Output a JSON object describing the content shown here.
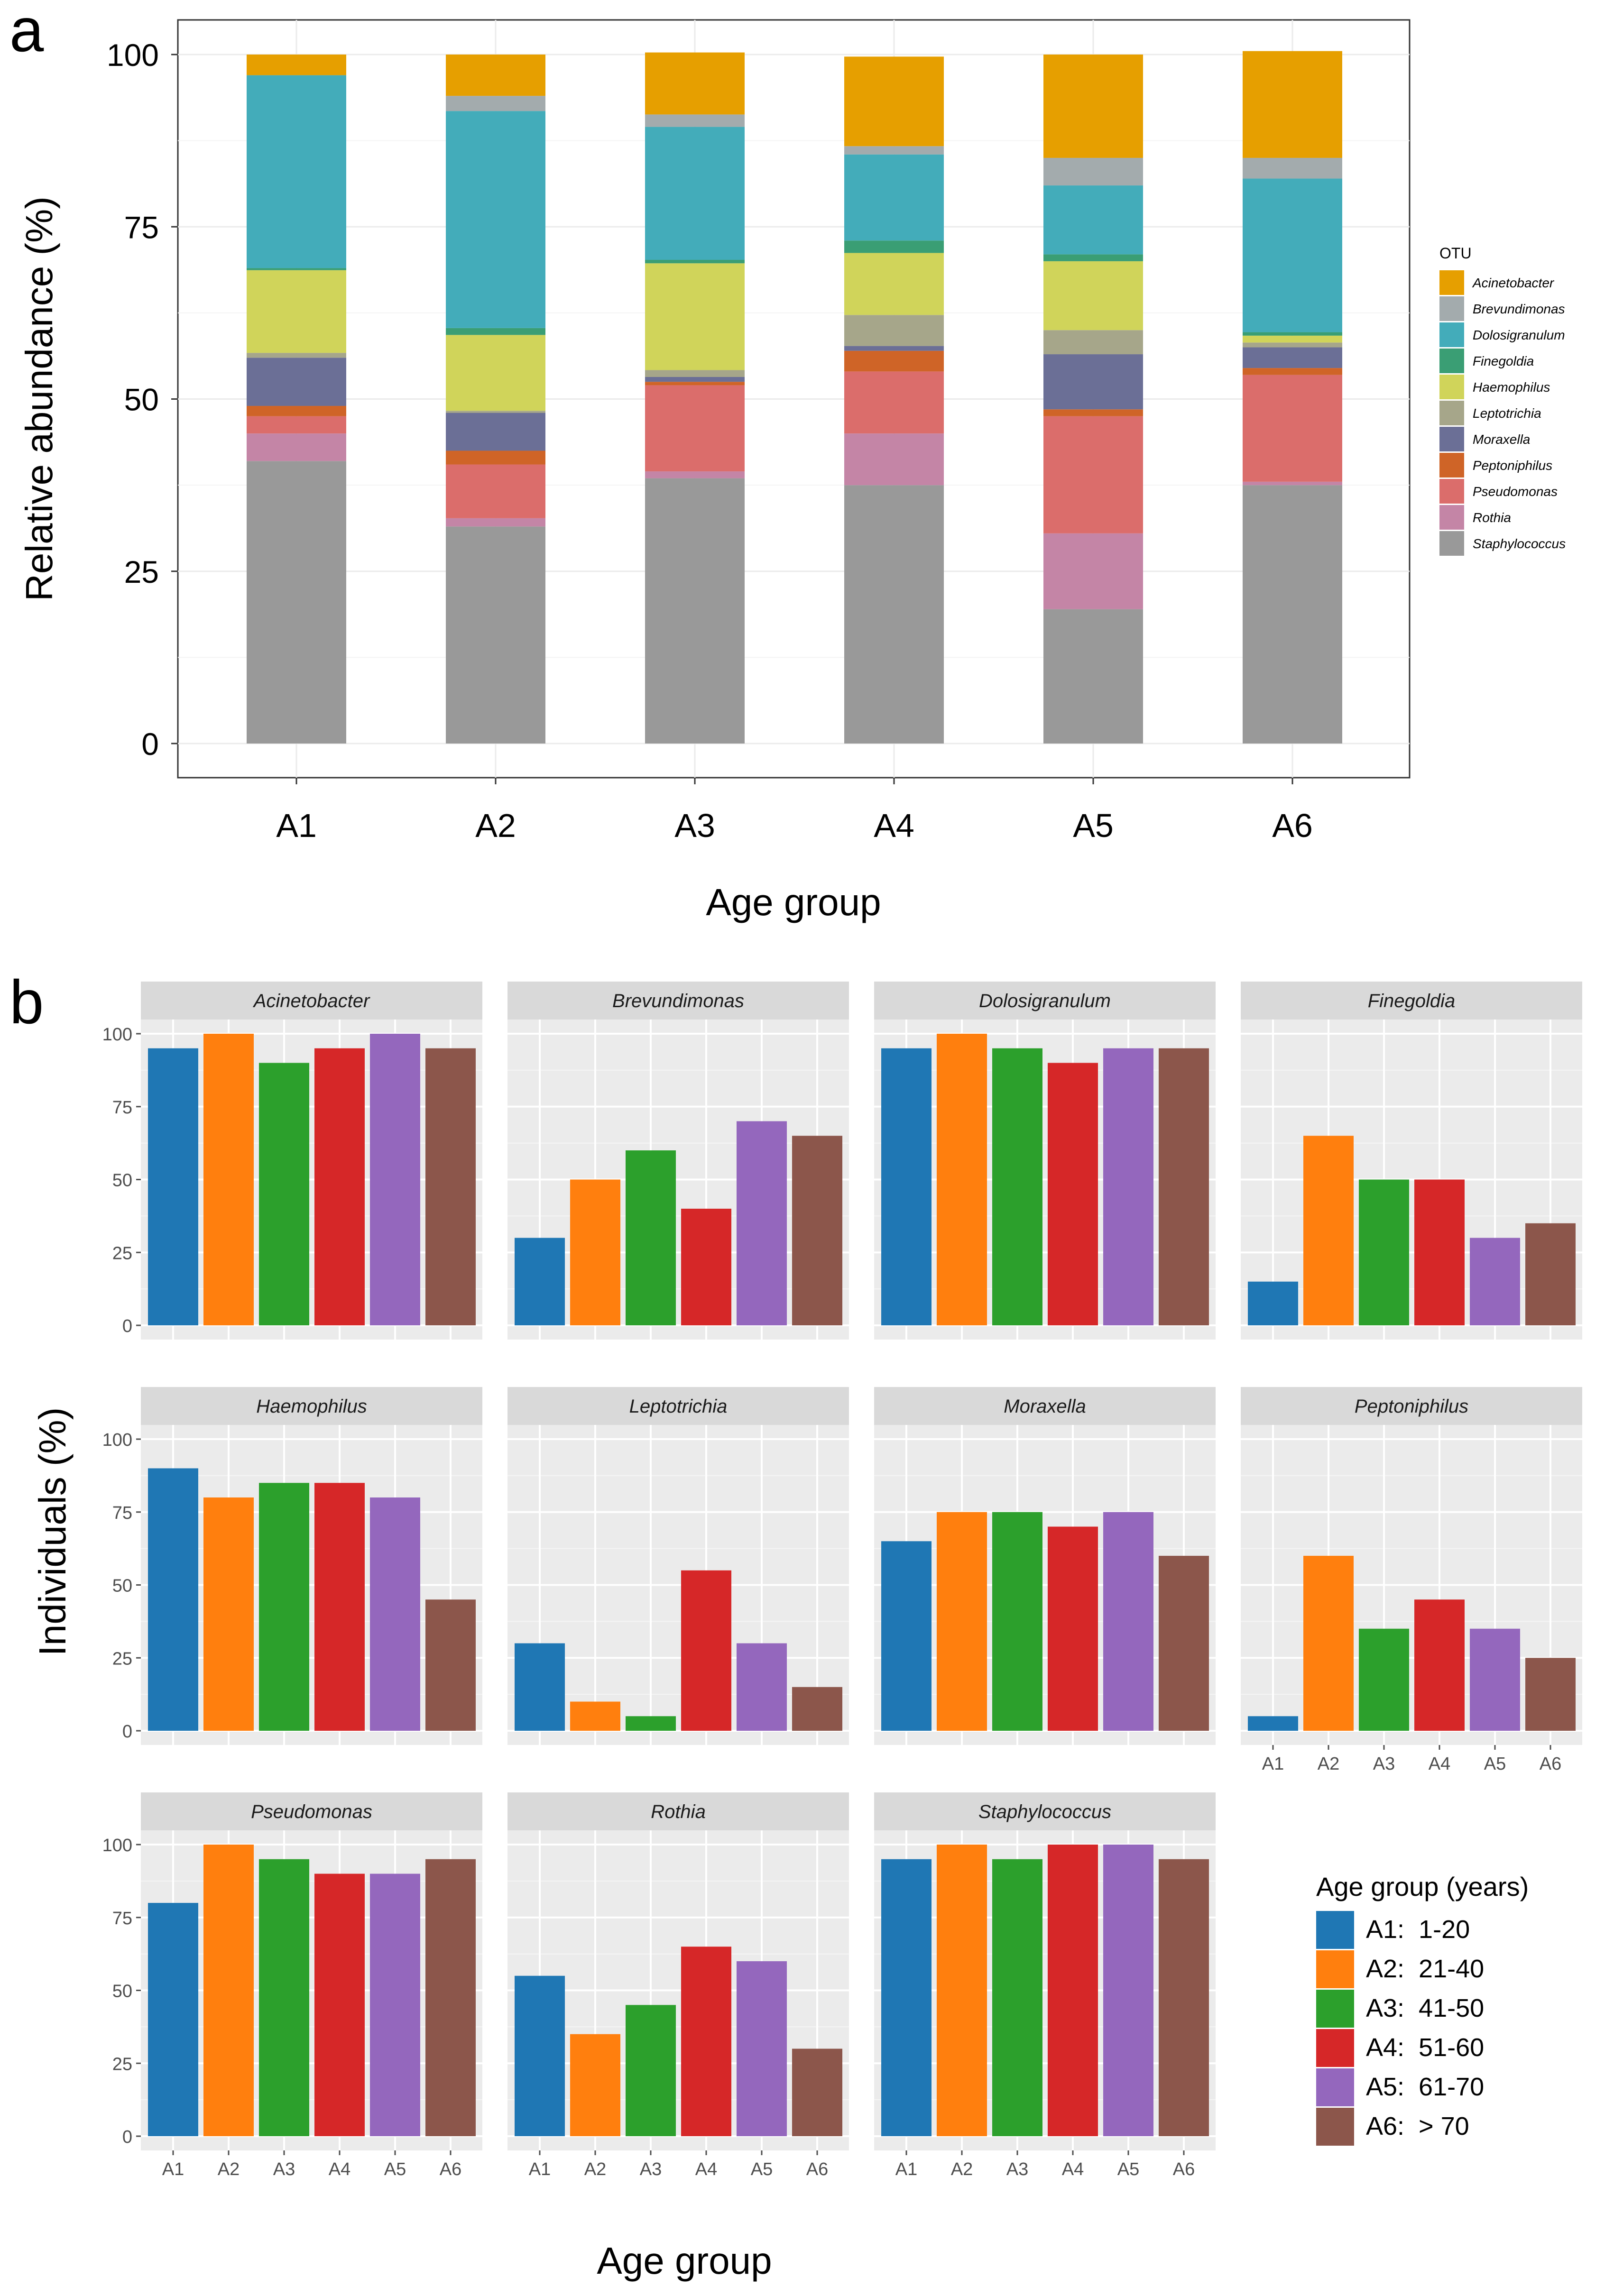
{
  "colors": {
    "Acinetobacter": "#E69F00",
    "Brevundimonas": "#A3ABAD",
    "Dolosigranulum": "#43ACBA",
    "Finegoldia": "#3A9E74",
    "Haemophilus": "#D0D45A",
    "Leptotrichia": "#A6A68A",
    "Moraxella": "#6B6F96",
    "Peptoniphilus": "#CF6427",
    "Pseudomonas": "#DB6D6B",
    "Rothia": "#C485A6",
    "Staphylococcus": "#999999",
    "age": [
      "#1F77B4",
      "#FF7F0E",
      "#2CA02C",
      "#D62728",
      "#9467BD",
      "#8C564B"
    ]
  },
  "chart_data": [
    {
      "panel_label": "a",
      "type": "bar",
      "stacked": true,
      "xlabel": "Age group",
      "ylabel": "Relative abundance (%)",
      "ylim": [
        0,
        100
      ],
      "yticks": [
        "0",
        "25",
        "50",
        "75",
        "100"
      ],
      "grid": true,
      "legend_title": "OTU",
      "legend_position": "right",
      "categories": [
        "A1",
        "A2",
        "A3",
        "A4",
        "A5",
        "A6"
      ],
      "series": [
        {
          "name": "Staphylococcus",
          "values": [
            41,
            31.5,
            38.5,
            37.5,
            19.5,
            37.5
          ]
        },
        {
          "name": "Rothia",
          "values": [
            4,
            1.2,
            1,
            7.5,
            11,
            0.5
          ]
        },
        {
          "name": "Pseudomonas",
          "values": [
            2.5,
            7.8,
            12.5,
            9,
            17,
            15.5
          ]
        },
        {
          "name": "Peptoniphilus",
          "values": [
            1.5,
            2,
            0.5,
            3,
            1,
            1
          ]
        },
        {
          "name": "Moraxella",
          "values": [
            7,
            5.5,
            0.7,
            0.7,
            8,
            3
          ]
        },
        {
          "name": "Leptotrichia",
          "values": [
            0.7,
            0.3,
            1,
            4.5,
            3.5,
            0.7
          ]
        },
        {
          "name": "Haemophilus",
          "values": [
            12,
            11,
            15.5,
            9,
            10,
            1
          ]
        },
        {
          "name": "Finegoldia",
          "values": [
            0.3,
            1,
            0.5,
            1.8,
            1,
            0.5
          ]
        },
        {
          "name": "Dolosigranulum",
          "values": [
            28,
            31.5,
            19.3,
            12.5,
            10,
            22.3
          ]
        },
        {
          "name": "Brevundimonas",
          "values": [
            0,
            2.2,
            1.8,
            1.2,
            4,
            3
          ]
        },
        {
          "name": "Acinetobacter",
          "values": [
            3,
            6,
            9,
            13,
            15,
            15.5
          ]
        }
      ]
    },
    {
      "panel_label": "b",
      "type": "bar",
      "faceted": true,
      "xlabel": "Age group",
      "ylabel": "Individuals (%)",
      "ylim": [
        0,
        100
      ],
      "yticks": [
        "0",
        "25",
        "50",
        "75",
        "100"
      ],
      "categories": [
        "A1",
        "A2",
        "A3",
        "A4",
        "A5",
        "A6"
      ],
      "legend_title": "Age group (years)",
      "legend_items": [
        "A1:  1-20",
        "A2:  21-40",
        "A3:  41-50",
        "A4:  51-60",
        "A5:  61-70",
        "A6:  > 70"
      ],
      "legend_position": "bottom-right",
      "facets": [
        {
          "name": "Acinetobacter",
          "values": [
            95,
            100,
            90,
            95,
            100,
            95
          ]
        },
        {
          "name": "Brevundimonas",
          "values": [
            30,
            50,
            60,
            40,
            70,
            65
          ]
        },
        {
          "name": "Dolosigranulum",
          "values": [
            95,
            100,
            95,
            90,
            95,
            95
          ]
        },
        {
          "name": "Finegoldia",
          "values": [
            15,
            65,
            50,
            50,
            30,
            35
          ]
        },
        {
          "name": "Haemophilus",
          "values": [
            90,
            80,
            85,
            85,
            80,
            45
          ]
        },
        {
          "name": "Leptotrichia",
          "values": [
            30,
            10,
            5,
            55,
            30,
            15
          ]
        },
        {
          "name": "Moraxella",
          "values": [
            65,
            75,
            75,
            70,
            75,
            60
          ]
        },
        {
          "name": "Peptoniphilus",
          "values": [
            5,
            60,
            35,
            45,
            35,
            25
          ]
        },
        {
          "name": "Pseudomonas",
          "values": [
            80,
            100,
            95,
            90,
            90,
            95
          ]
        },
        {
          "name": "Rothia",
          "values": [
            55,
            35,
            45,
            65,
            60,
            30
          ]
        },
        {
          "name": "Staphylococcus",
          "values": [
            95,
            100,
            95,
            100,
            100,
            95
          ]
        }
      ]
    }
  ]
}
